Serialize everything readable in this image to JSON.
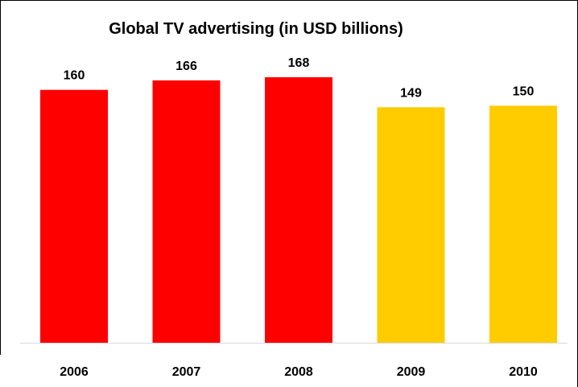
{
  "chart_data": {
    "type": "bar",
    "title": "Global TV advertising (in USD billions)",
    "xlabel": "",
    "ylabel": "",
    "categories": [
      "2006",
      "2007",
      "2008",
      "2009",
      "2010"
    ],
    "values": [
      160,
      166,
      168,
      149,
      150
    ],
    "colors": [
      "#ff0000",
      "#ff0000",
      "#ff0000",
      "#ffcc00",
      "#ffcc00"
    ],
    "grid": false,
    "legend": "none"
  }
}
